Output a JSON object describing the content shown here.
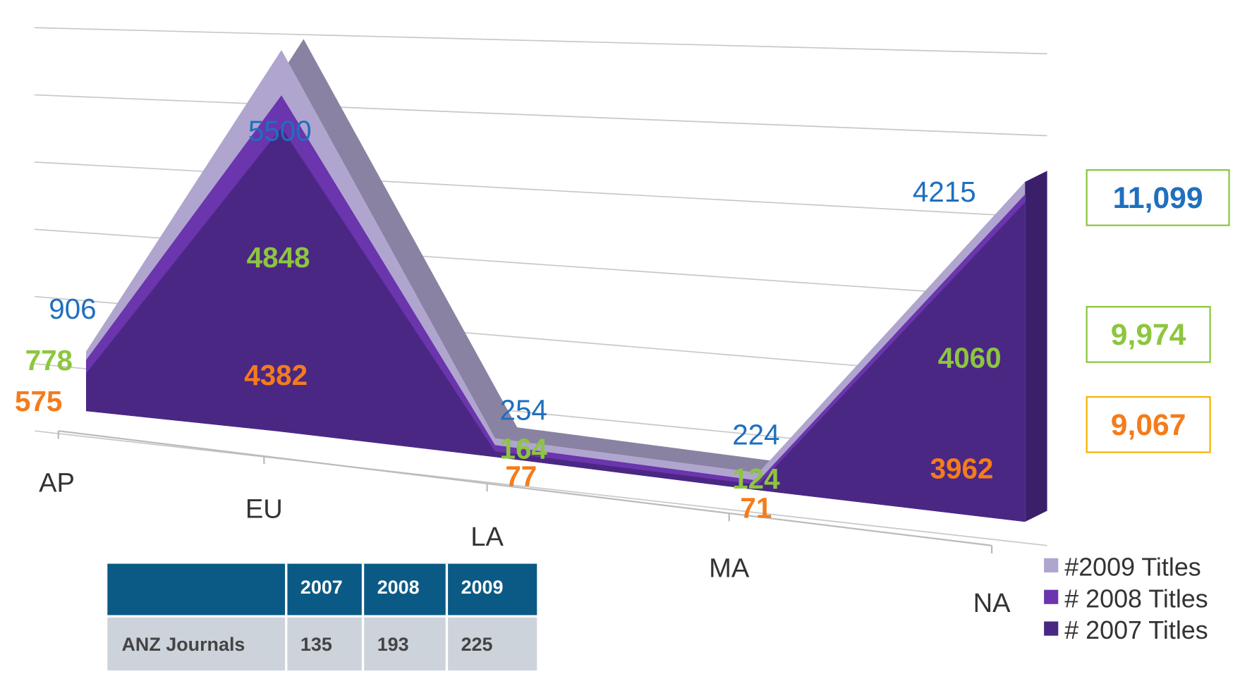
{
  "chart_data": {
    "type": "area3d",
    "categories": [
      "AP",
      "EU",
      "LA",
      "MA",
      "NA"
    ],
    "ylim": [
      0,
      6000
    ],
    "yticks": [
      0,
      1000,
      2000,
      3000,
      4000,
      5000,
      6000
    ],
    "grid": true,
    "legend": "bottom-right",
    "series": [
      {
        "name": "#2009 Titles",
        "color": "#b0a5cf",
        "label_color": "#1f6fbf",
        "values": [
          906,
          5500,
          254,
          224,
          4215
        ],
        "total": 11099,
        "total_label": "11,099"
      },
      {
        "name": "# 2008 Titles",
        "color": "#6a35ad",
        "label_color": "#8cc63f",
        "values": [
          778,
          4848,
          164,
          124,
          4060
        ],
        "total": 9974,
        "total_label": "9,974"
      },
      {
        "name": "# 2007 Titles",
        "color": "#4b2784",
        "label_color": "#f47c1c",
        "values": [
          575,
          4382,
          77,
          71,
          3962
        ],
        "total": 9067,
        "total_label": "9,067"
      }
    ]
  },
  "table": {
    "columns": [
      "2007",
      "2008",
      "2009"
    ],
    "rows": [
      [
        "ANZ Journals",
        135,
        193,
        225
      ]
    ]
  }
}
